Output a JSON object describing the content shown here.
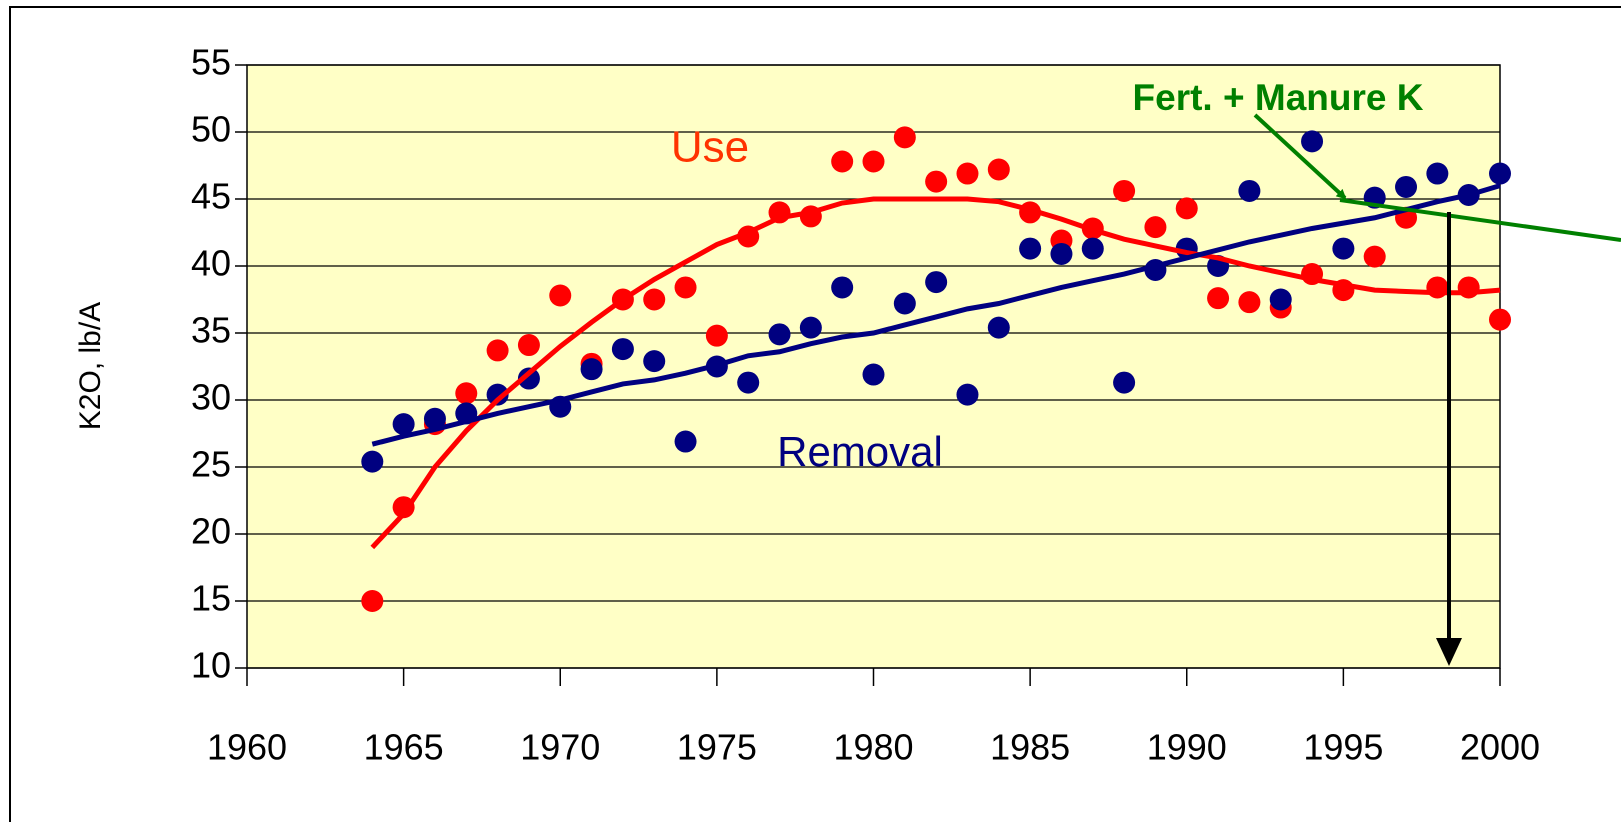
{
  "chart_data": {
    "type": "scatter",
    "y_label": "K2O, lb/A",
    "x": [
      1964,
      1965,
      1966,
      1967,
      1968,
      1969,
      1970,
      1971,
      1972,
      1973,
      1974,
      1975,
      1976,
      1977,
      1978,
      1979,
      1980,
      1981,
      1982,
      1983,
      1984,
      1985,
      1986,
      1987,
      1988,
      1989,
      1990,
      1991,
      1992,
      1993,
      1994,
      1995,
      1996,
      1997,
      1998,
      1999,
      2000
    ],
    "series": [
      {
        "name": "Use",
        "color": "#ff0000",
        "values": [
          15,
          22,
          28.2,
          30.5,
          33.7,
          34.1,
          37.8,
          32.7,
          37.5,
          37.5,
          38.4,
          34.8,
          42.2,
          44,
          43.7,
          47.8,
          47.8,
          49.6,
          46.3,
          46.9,
          47.2,
          44,
          41.9,
          42.8,
          45.6,
          42.9,
          44.3,
          37.6,
          37.3,
          36.9,
          39.4,
          38.2,
          40.7,
          43.6,
          38.4,
          38.4,
          36
        ],
        "trend": [
          19,
          21.5,
          25,
          27.7,
          30,
          32,
          34,
          35.8,
          37.5,
          39,
          40.3,
          41.6,
          42.5,
          43.6,
          44,
          44.7,
          45,
          45,
          45,
          45,
          44.8,
          44.2,
          43.5,
          42.7,
          42,
          41.5,
          41,
          40.6,
          40,
          39.5,
          39,
          38.6,
          38.2,
          38.1,
          38,
          38,
          38.2
        ]
      },
      {
        "name": "Removal",
        "color": "#000080",
        "values": [
          25.4,
          28.2,
          28.6,
          29,
          30.4,
          31.6,
          29.5,
          32.3,
          33.8,
          32.9,
          26.9,
          32.5,
          31.3,
          34.9,
          35.4,
          38.4,
          31.9,
          37.2,
          38.8,
          30.4,
          35.4,
          41.3,
          40.9,
          41.3,
          31.3,
          39.7,
          41.3,
          40,
          45.6,
          37.5,
          49.3,
          41.3,
          45.1,
          45.9,
          46.9,
          45.3,
          46.9
        ],
        "trend": [
          26.7,
          27.3,
          27.8,
          28.4,
          29,
          29.5,
          30,
          30.6,
          31.2,
          31.5,
          32,
          32.6,
          33.3,
          33.6,
          34.2,
          34.7,
          35,
          35.6,
          36.2,
          36.8,
          37.2,
          37.8,
          38.4,
          38.9,
          39.4,
          40,
          40.6,
          41.2,
          41.8,
          42.3,
          42.8,
          43.2,
          43.6,
          44.2,
          44.8,
          45.3,
          46
        ]
      }
    ],
    "annotation": "Fert. + Manure K",
    "annotation_color": "#008000",
    "xlim": [
      1960,
      2000
    ],
    "xticks": [
      1960,
      1965,
      1970,
      1975,
      1980,
      1985,
      1990,
      1995,
      2000
    ],
    "ylim": [
      10,
      55
    ],
    "yticks": [
      10,
      15,
      20,
      25,
      30,
      35,
      40,
      45,
      50,
      55
    ],
    "grid": true,
    "plot_background": "#ffffc6"
  }
}
